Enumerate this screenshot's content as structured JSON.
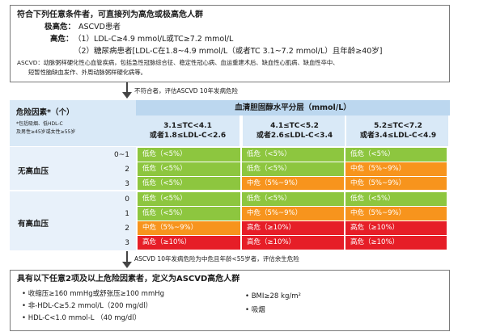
{
  "top_box": {
    "title": "符合下列任意条件者，可直接列为高危或极高危人群",
    "line1_label": "极高危：",
    "line1_text": "ASCVD患者",
    "line2_label": "高危：",
    "line2_text": "（1）LDL-C≥4.9 mmol/L或TC≥7.2 mmol/L",
    "line3_text": "（2）糖尿病患者[LDL-C在1.8~4.9 mmol/L（或者TC 3.1~7.2 mmol/L）且年龄≥40岁]",
    "footnote_line1": "ASCVD：动脉粥样硬化性心血管疾病，包括急性冠脉综合征、稳定性冠心病、血运重建术后、缺血性心肌病、缺血性卒中、",
    "footnote_line2": "短暂性脑缺血发作、外周动脉粥样硬化病等。"
  },
  "arrow1_note": "不符合者，评估ASCVD 10年发病危险",
  "table": {
    "header_left_title": "危险因素*（个）",
    "header_left_note1": "*包括吸烟、低HDL-C",
    "header_left_note2": "及男性≥45岁或女性≥55岁",
    "header_title": "血清胆固醇水平分层（mmol/L）",
    "columns": [
      {
        "line1": "3.1≤TC<4.1",
        "line2": "或者1.8≤LDL-C<2.6"
      },
      {
        "line1": "4.1≤TC<5.2",
        "line2": "或者2.6≤LDL-C<3.4"
      },
      {
        "line1": "5.2≤TC<7.2",
        "line2": "或者3.4≤LDL-C<4.9"
      }
    ],
    "group1_label": "无高血压",
    "group2_label": "有高血压",
    "rows": [
      {
        "count": "0~1",
        "cells": [
          {
            "text": "低危（<5%）",
            "level": "green"
          },
          {
            "text": "低危（<5%）",
            "level": "green"
          },
          {
            "text": "低危（<5%）",
            "level": "green"
          }
        ]
      },
      {
        "count": "2",
        "cells": [
          {
            "text": "低危（<5%）",
            "level": "green"
          },
          {
            "text": "低危（<5%）",
            "level": "green"
          },
          {
            "text": "中危（5%~9%）",
            "level": "orange"
          }
        ]
      },
      {
        "count": "3",
        "cells": [
          {
            "text": "低危（<5%）",
            "level": "green"
          },
          {
            "text": "中危（5%~9%）",
            "level": "orange"
          },
          {
            "text": "中危（5%~9%）",
            "level": "orange"
          }
        ]
      },
      {
        "count": "0",
        "cells": [
          {
            "text": "低危（<5%）",
            "level": "green"
          },
          {
            "text": "低危（<5%）",
            "level": "green"
          },
          {
            "text": "低危（<5%）",
            "level": "green"
          }
        ]
      },
      {
        "count": "1",
        "cells": [
          {
            "text": "低危（<5%）",
            "level": "green"
          },
          {
            "text": "中危（5%~9%）",
            "level": "orange"
          },
          {
            "text": "中危（5%~9%）",
            "level": "orange"
          }
        ]
      },
      {
        "count": "2",
        "cells": [
          {
            "text": "中危（5%~9%）",
            "level": "orange"
          },
          {
            "text": "高危（≥10%）",
            "level": "red"
          },
          {
            "text": "高危（≥10%）",
            "level": "red"
          }
        ]
      },
      {
        "count": "3",
        "cells": [
          {
            "text": "高危（≥10%）",
            "level": "red"
          },
          {
            "text": "高危（≥10%）",
            "level": "red"
          },
          {
            "text": "高危（≥10%）",
            "level": "red"
          }
        ]
      }
    ]
  },
  "arrow2_note": "ASCVD 10年发病危险为中危且年龄<55岁者，评估余生危险",
  "bottom_box": {
    "title": "具有以下任意2项及以上危险因素者，定义为ASCVD高危人群",
    "left_items": [
      "• 收缩压≥160 mmHg或舒张压≥100 mmHg",
      "• 非-HDL-C≥5.2 mmol/L（200 mg/dl）",
      "• HDL-C<1.0 mmol-L （40 mg/dl）"
    ],
    "right_items": [
      "• BMI≥28 kg/m²",
      "• 吸烟"
    ]
  }
}
